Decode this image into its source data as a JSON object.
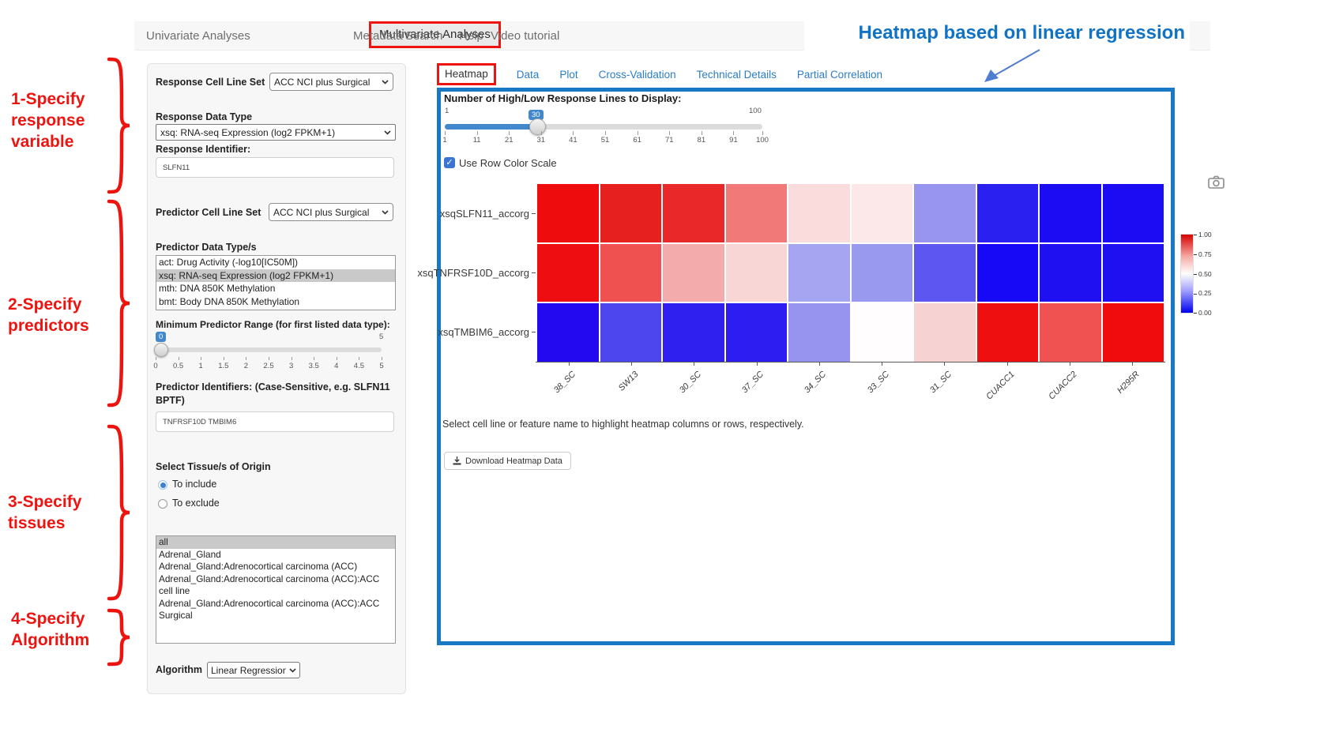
{
  "annotations": {
    "red_color": "#ed1410",
    "blue_color": "#1173c5",
    "steps": [
      {
        "text": "1-Specify\nresponse\nvariable"
      },
      {
        "text": "2-Specify\npredictors"
      },
      {
        "text": "3-Specify\ntissues"
      },
      {
        "text": "4-Specify\nAlgorithm"
      }
    ],
    "heatmap_note": "Heatmap based on linear regression"
  },
  "nav": {
    "items": [
      {
        "label": "Univariate Analyses",
        "active": false
      },
      {
        "label": "Multivariate Analyses",
        "active": true
      },
      {
        "label": "Metadata",
        "active": false
      },
      {
        "label": "Search",
        "active": false
      },
      {
        "label": "Help",
        "active": false
      },
      {
        "label": "Video tutorial",
        "active": false
      }
    ]
  },
  "form": {
    "response_cell_line_set": {
      "label": "Response Cell Line Set",
      "value": "ACC NCI plus Surgical"
    },
    "response_data_type": {
      "label": "Response Data Type",
      "value": "xsq: RNA-seq Expression (log2 FPKM+1)"
    },
    "response_identifier": {
      "label": "Response Identifier:",
      "value": "SLFN11"
    },
    "predictor_cell_line_set": {
      "label": "Predictor Cell Line Set",
      "value": "ACC NCI plus Surgical"
    },
    "predictor_data_types": {
      "label": "Predictor Data Type/s",
      "options": [
        "act: Drug Activity (-log10[IC50M])",
        "xsq: RNA-seq Expression (log2 FPKM+1)",
        "mth: DNA 850K Methylation",
        "bmt: Body DNA 850K Methylation"
      ],
      "selected": "xsq: RNA-seq Expression (log2 FPKM+1)"
    },
    "min_predictor_range": {
      "label": "Minimum Predictor Range (for first listed data type):",
      "value": "0",
      "max_label": "5",
      "ticks": [
        "0",
        "0.5",
        "1",
        "1.5",
        "2",
        "2.5",
        "3",
        "3.5",
        "4",
        "4.5",
        "5"
      ]
    },
    "predictor_identifiers": {
      "label": "Predictor Identifiers: (Case-Sensitive, e.g. SLFN11 BPTF)",
      "value": "TNFRSF10D TMBIM6"
    },
    "tissue": {
      "label": "Select Tissue/s of Origin",
      "radios": [
        {
          "label": "To include",
          "selected": true
        },
        {
          "label": "To exclude",
          "selected": false
        }
      ],
      "options": [
        "all",
        "Adrenal_Gland",
        "Adrenal_Gland:Adrenocortical carcinoma (ACC)",
        "Adrenal_Gland:Adrenocortical carcinoma (ACC):ACC cell line",
        "Adrenal_Gland:Adrenocortical carcinoma (ACC):ACC Surgical"
      ],
      "selected": "all"
    },
    "algorithm": {
      "label": "Algorithm",
      "value": "Linear Regression"
    }
  },
  "tabs": {
    "items": [
      {
        "label": "Heatmap",
        "active": true
      },
      {
        "label": "Data",
        "active": false
      },
      {
        "label": "Plot",
        "active": false
      },
      {
        "label": "Cross-Validation",
        "active": false
      },
      {
        "label": "Technical Details",
        "active": false
      },
      {
        "label": "Partial Correlation",
        "active": false
      }
    ]
  },
  "panel": {
    "lines_slider": {
      "label": "Number of High/Low Response Lines to Display:",
      "min": "1",
      "max": "100",
      "value": "30",
      "ticks": [
        "1",
        "11",
        "21",
        "31",
        "41",
        "51",
        "61",
        "71",
        "81",
        "91",
        "100"
      ]
    },
    "row_color_scale": {
      "label": "Use Row Color Scale",
      "checked": true
    },
    "hint": "Select cell line or feature name to highlight heatmap columns or rows, respectively.",
    "download_button": "Download Heatmap Data"
  },
  "chart_data": {
    "type": "heatmap",
    "rows": [
      "xsqSLFN11_accorg",
      "xsqTNFRSF10D_accorg",
      "xsqTMBIM6_accorg"
    ],
    "columns": [
      "38_SC",
      "SW13",
      "30_SC",
      "37_SC",
      "34_SC",
      "33_SC",
      "31_SC",
      "CUACC1",
      "CUACC2",
      "H295R"
    ],
    "values": [
      [
        0.97,
        0.94,
        0.93,
        0.77,
        0.57,
        0.55,
        0.3,
        0.07,
        0.03,
        0.03
      ],
      [
        0.97,
        0.82,
        0.66,
        0.58,
        0.32,
        0.3,
        0.18,
        0.02,
        0.05,
        0.05
      ],
      [
        0.06,
        0.15,
        0.08,
        0.08,
        0.3,
        0.5,
        0.59,
        0.97,
        0.82,
        0.97
      ]
    ],
    "cell_colors": [
      [
        "#ee0c0c",
        "#e61f1f",
        "#e92929",
        "#f17a78",
        "#fadcdc",
        "#fce8e8",
        "#9795ef",
        "#2a20ef",
        "#1c0cf3",
        "#1c0cf3"
      ],
      [
        "#ee0d10",
        "#ef5050",
        "#f3abab",
        "#f8d6d6",
        "#a6a5f2",
        "#9a99f0",
        "#5d56f0",
        "#1708f6",
        "#1f10f2",
        "#1f10f2"
      ],
      [
        "#2309f0",
        "#4d46ee",
        "#2f20f0",
        "#2d1df0",
        "#9694ee",
        "#fffdfd",
        "#f7d2d2",
        "#ee1010",
        "#f05252",
        "#f00c0c"
      ]
    ],
    "colorbar": {
      "ticks": [
        "1.00",
        "0.75",
        "0.50",
        "0.25",
        "0.00"
      ],
      "gradient": [
        "#d60000",
        "#ffffff",
        "#0000ee"
      ],
      "position": "right"
    }
  }
}
